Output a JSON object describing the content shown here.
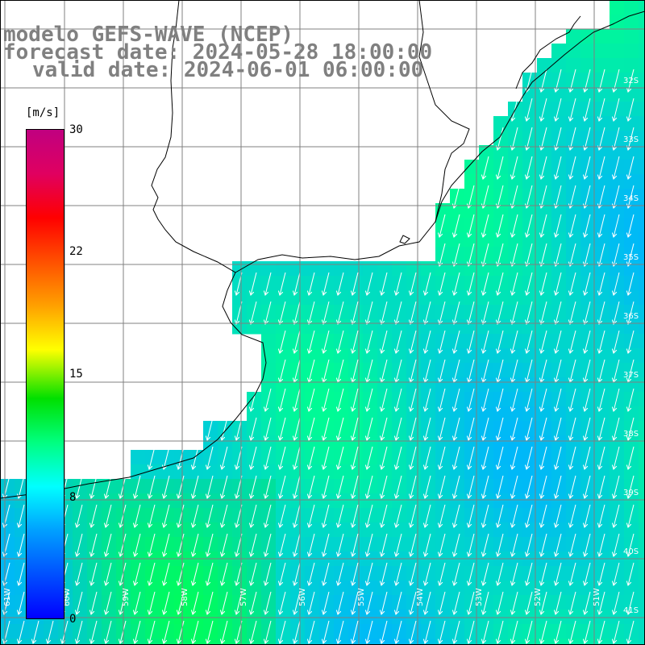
{
  "title": {
    "line1": "modelo GEFS-WAVE (NCEP)",
    "line2": "forecast date: 2024-05-28 18:00:00",
    "line3": "valid date: 2024-06-01 06:00:00"
  },
  "colorbar": {
    "unit": "[m/s]",
    "ticks": [
      "30",
      "22",
      "15",
      "8",
      "0"
    ],
    "range": [
      0,
      30
    ],
    "colors": [
      "#0000ff",
      "#00a0ff",
      "#00ffff",
      "#00ff80",
      "#00e000",
      "#ffff00",
      "#ffa000",
      "#ff5000",
      "#ff0000",
      "#e00060",
      "#c00080"
    ]
  },
  "map": {
    "lat_labels": [
      "32S",
      "33S",
      "34S",
      "35S",
      "36S",
      "37S",
      "38S",
      "39S",
      "40S",
      "41S"
    ],
    "lon_labels": [
      "61W",
      "60W",
      "59W",
      "58W",
      "57W",
      "56W",
      "55W",
      "54W",
      "53W",
      "52W",
      "51W"
    ],
    "field_speed_range_ms": [
      3,
      10
    ],
    "arrow_direction": "toward south-southwest",
    "land_color": "#ffffff",
    "coastline_color": "#000000",
    "grid_color": "#808080"
  }
}
